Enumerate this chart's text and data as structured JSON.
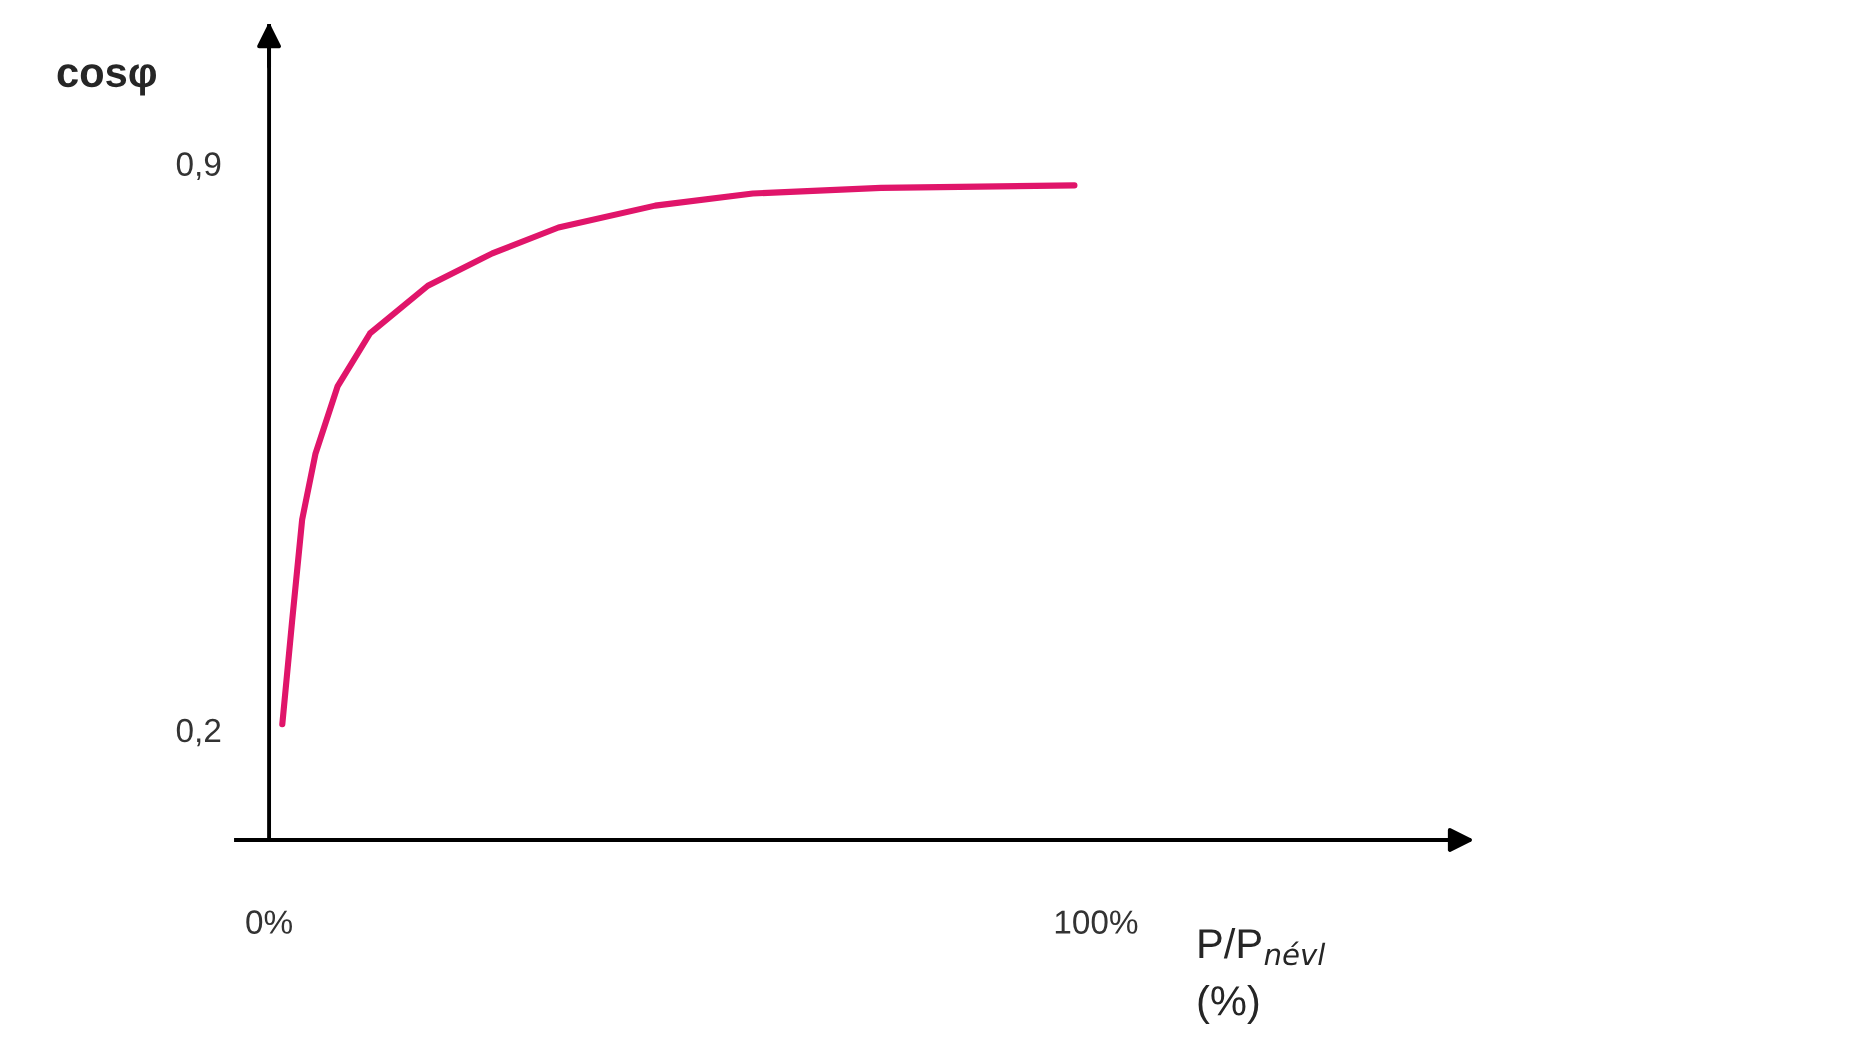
{
  "chart_data": {
    "type": "line",
    "xlabel": "P/P$_{névl}$\n(%)",
    "ylabel": "cosφ",
    "x": [
      1.6,
      2.8,
      4.0,
      5.6,
      8.3,
      12.2,
      19.2,
      27,
      35,
      46.7,
      58.5,
      74,
      97.4
    ],
    "series": [
      {
        "color": "#e0156a",
        "values": [
          0.207,
          0.336,
          0.46,
          0.541,
          0.625,
          0.69,
          0.749,
          0.789,
          0.821,
          0.848,
          0.863,
          0.87,
          0.873
        ]
      }
    ],
    "xlim": [
      -4,
      145
    ],
    "ylim": [
      0.064,
      1.07
    ],
    "xticks": [
      {
        "value": 0,
        "label": "0%"
      },
      {
        "value": 100,
        "label": "100%"
      }
    ],
    "yticks": [
      {
        "value": 0.2,
        "label": "0,2"
      },
      {
        "value": 0.9,
        "label": "0,9"
      }
    ],
    "grid": false,
    "legend": false,
    "marker": "none",
    "line_style": "solid"
  }
}
